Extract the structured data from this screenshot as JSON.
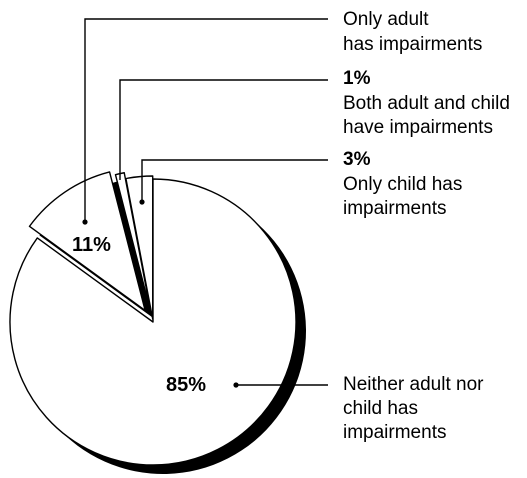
{
  "chart_data": {
    "type": "pie",
    "title": "",
    "slices": [
      {
        "label": "Neither adult nor child has impairments",
        "value": 85,
        "pct_label": "85%"
      },
      {
        "label": "Only adult has impairments",
        "value": 11,
        "pct_label": "11%"
      },
      {
        "label": "Both adult and child have impairments",
        "value": 1,
        "pct_label": "1%"
      },
      {
        "label": "Only child has impairments",
        "value": 3,
        "pct_label": "3%"
      }
    ],
    "colors": {
      "fill": "#ffffff",
      "outline": "#000000",
      "shadow": "#000000"
    }
  },
  "annotations": {
    "only_adult": {
      "lines": [
        "Only adult",
        "has impairments"
      ]
    },
    "both": {
      "pct": "1%",
      "lines": [
        "Both adult and child",
        "have impairments"
      ]
    },
    "only_child": {
      "pct": "3%",
      "lines": [
        "Only child has",
        "impairments"
      ]
    },
    "neither": {
      "lines": [
        "Neither adult nor",
        "child has",
        "impairments"
      ]
    },
    "inside": {
      "only_adult_pct": "11%",
      "neither_pct": "85%"
    }
  }
}
